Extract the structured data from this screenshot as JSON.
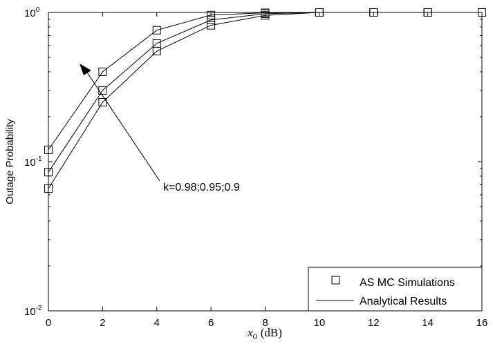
{
  "chart_data": {
    "type": "line",
    "xlabel_var": "x",
    "xlabel_sub": "0",
    "xlabel_unit": "(dB)",
    "ylabel": "Outage Probability",
    "xlim": [
      0,
      16
    ],
    "ylim": [
      0.01,
      1
    ],
    "yscale": "log",
    "grid": false,
    "x_ticks": [
      0,
      2,
      4,
      6,
      8,
      10,
      12,
      14,
      16
    ],
    "y_ticks": [
      {
        "base": "10",
        "exp": "0"
      },
      {
        "base": "10",
        "exp": "-1"
      },
      {
        "base": "10",
        "exp": "-2"
      }
    ],
    "series": [
      {
        "x": [
          0,
          2,
          4,
          6,
          8,
          10,
          12,
          14,
          16
        ],
        "values": [
          0.12,
          0.4,
          0.76,
          0.96,
          0.995,
          1.0,
          1.0,
          1.0,
          1.0
        ]
      },
      {
        "x": [
          0,
          2,
          4,
          6,
          8,
          10,
          12,
          14,
          16
        ],
        "values": [
          0.085,
          0.3,
          0.62,
          0.89,
          0.98,
          1.0,
          1.0,
          1.0,
          1.0
        ]
      },
      {
        "x": [
          0,
          2,
          4,
          6,
          8,
          10,
          12,
          14,
          16
        ],
        "values": [
          0.066,
          0.25,
          0.55,
          0.82,
          0.955,
          1.0,
          1.0,
          1.0,
          1.0
        ]
      }
    ],
    "annotation": "k=0.98;0.95;0.9",
    "legend": {
      "placement": "bottom-right",
      "entries": [
        "AS  MC Simulations",
        "Analytical Results"
      ]
    }
  }
}
